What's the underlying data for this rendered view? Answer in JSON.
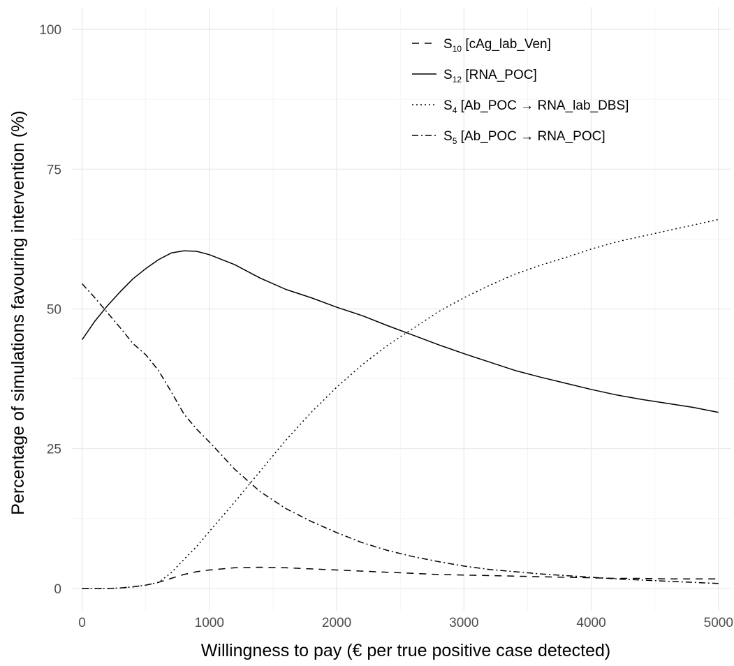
{
  "chart_data": {
    "type": "line",
    "title": "",
    "xlabel": "Willingness to pay (€ per true positive case detected)",
    "ylabel": "Percentage of simulations favouring intervention (%)",
    "xlim": [
      -80,
      5100
    ],
    "ylim": [
      -4,
      104
    ],
    "x_ticks": [
      0,
      1000,
      2000,
      3000,
      4000,
      5000
    ],
    "y_ticks": [
      0,
      25,
      50,
      75,
      100
    ],
    "grid": true,
    "legend_position": "top-right",
    "x": [
      0,
      100,
      200,
      300,
      400,
      500,
      600,
      700,
      800,
      900,
      1000,
      1200,
      1400,
      1600,
      1800,
      2000,
      2200,
      2400,
      2600,
      2800,
      3000,
      3200,
      3400,
      3600,
      3800,
      4000,
      4200,
      4400,
      4600,
      4800,
      5000
    ],
    "series": [
      {
        "name": "S10 [cAg_lab_Ven]",
        "name_parts": {
          "letter": "S",
          "sub": "10",
          "rest": "[cAg_lab_Ven]"
        },
        "dash": "10,8",
        "values": [
          0,
          0,
          0,
          0.1,
          0.3,
          0.6,
          1.1,
          1.8,
          2.5,
          3.0,
          3.3,
          3.7,
          3.8,
          3.7,
          3.5,
          3.3,
          3.1,
          2.9,
          2.7,
          2.5,
          2.4,
          2.3,
          2.2,
          2.1,
          2.0,
          1.9,
          1.8,
          1.8,
          1.7,
          1.7,
          1.7
        ]
      },
      {
        "name": "S12 [RNA_POC]",
        "name_parts": {
          "letter": "S",
          "sub": "12",
          "rest": "[RNA_POC]"
        },
        "dash": "",
        "values": [
          44.5,
          47.8,
          50.6,
          53.1,
          55.4,
          57.2,
          58.8,
          60.0,
          60.4,
          60.3,
          59.7,
          57.9,
          55.5,
          53.5,
          52.0,
          50.3,
          48.8,
          47.0,
          45.3,
          43.6,
          42.0,
          40.5,
          39.0,
          37.8,
          36.7,
          35.6,
          34.6,
          33.8,
          33.1,
          32.4,
          31.5
        ]
      },
      {
        "name": "S4 [Ab_POC → RNA_lab_DBS]",
        "name_parts": {
          "letter": "S",
          "sub": "4",
          "rest": "[Ab_POC → RNA_lab_DBS]"
        },
        "dash": "2,4",
        "values": [
          0,
          0,
          0,
          0.1,
          0.3,
          0.6,
          1.1,
          2.8,
          5.2,
          7.5,
          10.2,
          15.5,
          21.0,
          26.5,
          31.5,
          36.0,
          40.0,
          43.5,
          46.5,
          49.5,
          52.0,
          54.2,
          56.2,
          57.8,
          59.2,
          60.7,
          62.0,
          63.0,
          64.0,
          65.0,
          66.0
        ]
      },
      {
        "name": "S5 [Ab_POC → RNA_POC]",
        "name_parts": {
          "letter": "S",
          "sub": "5",
          "rest": "[Ab_POC → RNA_POC]"
        },
        "dash": "9,4,2,4",
        "values": [
          54.5,
          52.0,
          49.3,
          46.6,
          43.8,
          41.8,
          39.0,
          35.2,
          31.2,
          28.5,
          26.2,
          21.3,
          17.3,
          14.3,
          12.0,
          10.0,
          8.2,
          6.8,
          5.7,
          4.8,
          4.0,
          3.4,
          3.0,
          2.6,
          2.3,
          2.0,
          1.7,
          1.5,
          1.3,
          1.1,
          0.9
        ]
      }
    ]
  }
}
